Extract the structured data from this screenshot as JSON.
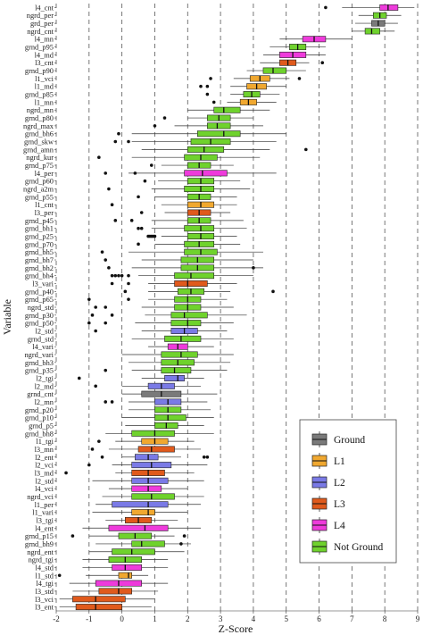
{
  "chart_data": {
    "type": "boxplot",
    "title": "",
    "xlabel": "Z-Score",
    "ylabel": "Variable",
    "xlim": [
      -2,
      9
    ],
    "xticks": [
      -2,
      -1,
      0,
      1,
      2,
      3,
      4,
      5,
      6,
      7,
      8,
      9
    ],
    "grid": "vertical dashed",
    "legend_position": "bottom-right",
    "groups": [
      {
        "name": "Ground",
        "color": "#7a7a7a"
      },
      {
        "name": "L1",
        "color": "#f0a830"
      },
      {
        "name": "L2",
        "color": "#7a7ae6"
      },
      {
        "name": "L3",
        "color": "#e05a1c"
      },
      {
        "name": "L4",
        "color": "#ee3bdb"
      },
      {
        "name": "Not Ground",
        "color": "#6fd22d"
      }
    ],
    "boxes": [
      {
        "label": "l4_cnt",
        "group": "L4",
        "wl": 6.7,
        "q1": 7.85,
        "med": 8.1,
        "q3": 8.4,
        "wh": 8.9,
        "out": [
          6.2
        ]
      },
      {
        "label": "ngrd_per",
        "group": "Not Ground",
        "wl": 7.2,
        "q1": 7.65,
        "med": 7.85,
        "q3": 8.05,
        "wh": 8.5,
        "out": []
      },
      {
        "label": "grd_per",
        "group": "Ground",
        "wl": 7.1,
        "q1": 7.6,
        "med": 7.8,
        "q3": 8.0,
        "wh": 8.4,
        "out": []
      },
      {
        "label": "ngrd_cnt",
        "group": "Not Ground",
        "wl": 7.0,
        "q1": 7.4,
        "med": 7.6,
        "q3": 7.85,
        "wh": 8.3,
        "out": []
      },
      {
        "label": "l4_mn",
        "group": "L4",
        "wl": 4.8,
        "q1": 5.5,
        "med": 5.85,
        "q3": 6.2,
        "wh": 7.0,
        "out": []
      },
      {
        "label": "grnd_p95",
        "group": "Not Ground",
        "wl": 4.5,
        "q1": 5.1,
        "med": 5.35,
        "q3": 5.6,
        "wh": 6.2,
        "out": []
      },
      {
        "label": "l4_md",
        "group": "L4",
        "wl": 4.3,
        "q1": 4.8,
        "med": 5.2,
        "q3": 5.6,
        "wh": 6.2,
        "out": []
      },
      {
        "label": "l3_cnt",
        "group": "L3",
        "wl": 4.2,
        "q1": 4.8,
        "med": 5.05,
        "q3": 5.3,
        "wh": 5.7,
        "out": [
          6.1
        ]
      },
      {
        "label": "grnd_p90",
        "group": "Not Ground",
        "wl": 3.8,
        "q1": 4.3,
        "med": 4.6,
        "q3": 5.0,
        "wh": 5.6,
        "out": []
      },
      {
        "label": "l1_vci",
        "group": "L1",
        "wl": 3.4,
        "q1": 3.9,
        "med": 4.2,
        "q3": 4.5,
        "wh": 5.1,
        "out": [
          2.7,
          5.4
        ]
      },
      {
        "label": "l1_md",
        "group": "L1",
        "wl": 3.3,
        "q1": 3.8,
        "med": 4.1,
        "q3": 4.4,
        "wh": 5.0,
        "out": [
          2.4,
          2.6
        ]
      },
      {
        "label": "grnd_p85",
        "group": "Not Ground",
        "wl": 3.3,
        "q1": 3.7,
        "med": 3.95,
        "q3": 4.2,
        "wh": 4.8,
        "out": [
          2.6
        ]
      },
      {
        "label": "l1_mn",
        "group": "L1",
        "wl": 3.2,
        "q1": 3.6,
        "med": 3.85,
        "q3": 4.1,
        "wh": 4.7,
        "out": [
          2.8
        ]
      },
      {
        "label": "ngrd_mn",
        "group": "Not Ground",
        "wl": 2.0,
        "q1": 2.8,
        "med": 3.1,
        "q3": 3.6,
        "wh": 4.5,
        "out": []
      },
      {
        "label": "grnd_p80",
        "group": "Not Ground",
        "wl": 2.0,
        "q1": 2.6,
        "med": 2.95,
        "q3": 3.3,
        "wh": 4.0,
        "out": [
          1.3
        ]
      },
      {
        "label": "ngrd_max",
        "group": "Not Ground",
        "wl": 1.6,
        "q1": 2.6,
        "med": 2.9,
        "q3": 3.3,
        "wh": 4.3,
        "out": [
          1.0
        ]
      },
      {
        "label": "grnd_bh6",
        "group": "Not Ground",
        "wl": 0.3,
        "q1": 2.3,
        "med": 3.1,
        "q3": 3.6,
        "wh": 5.0,
        "out": [
          -0.1
        ]
      },
      {
        "label": "grnd_skw",
        "group": "Not Ground",
        "wl": 0.3,
        "q1": 2.1,
        "med": 2.7,
        "q3": 3.3,
        "wh": 4.7,
        "out": [
          -0.2,
          0.2
        ]
      },
      {
        "label": "grnd_amn",
        "group": "Not Ground",
        "wl": 0.6,
        "q1": 2.0,
        "med": 2.5,
        "q3": 3.1,
        "wh": 4.5,
        "out": [
          5.6
        ]
      },
      {
        "label": "ngrd_kur",
        "group": "Not Ground",
        "wl": 0.3,
        "q1": 1.9,
        "med": 2.4,
        "q3": 2.9,
        "wh": 4.2,
        "out": [
          -0.7
        ]
      },
      {
        "label": "grnd_p75",
        "group": "Not Ground",
        "wl": 1.2,
        "q1": 2.0,
        "med": 2.35,
        "q3": 2.7,
        "wh": 3.4,
        "out": [
          0.9
        ]
      },
      {
        "label": "l4_per",
        "group": "L4",
        "wl": 0.2,
        "q1": 1.9,
        "med": 2.45,
        "q3": 3.2,
        "wh": 4.7,
        "out": [
          -0.5,
          0.4
        ]
      },
      {
        "label": "grnd_p60",
        "group": "Not Ground",
        "wl": 1.1,
        "q1": 2.0,
        "med": 2.4,
        "q3": 2.8,
        "wh": 3.6,
        "out": [
          0.7
        ]
      },
      {
        "label": "ngrd_a2m",
        "group": "Not Ground",
        "wl": 0.9,
        "q1": 1.9,
        "med": 2.4,
        "q3": 2.8,
        "wh": 3.9,
        "out": [
          -0.4
        ]
      },
      {
        "label": "grnd_p55",
        "group": "Not Ground",
        "wl": 1.0,
        "q1": 2.0,
        "med": 2.35,
        "q3": 2.7,
        "wh": 3.5,
        "out": [
          0.5
        ]
      },
      {
        "label": "l1_cnt",
        "group": "L1",
        "wl": 1.2,
        "q1": 2.0,
        "med": 2.4,
        "q3": 2.8,
        "wh": 3.5,
        "out": [
          -0.3
        ]
      },
      {
        "label": "l3_per",
        "group": "L3",
        "wl": 1.3,
        "q1": 2.0,
        "med": 2.35,
        "q3": 2.7,
        "wh": 3.3,
        "out": [
          0.6
        ]
      },
      {
        "label": "grnd_p45",
        "group": "Not Ground",
        "wl": 0.9,
        "q1": 2.0,
        "med": 2.35,
        "q3": 2.7,
        "wh": 3.7,
        "out": [
          -0.2,
          0.3
        ]
      },
      {
        "label": "grnd_bh1",
        "group": "Not Ground",
        "wl": 0.9,
        "q1": 1.9,
        "med": 2.4,
        "q3": 2.8,
        "wh": 3.8,
        "out": [
          0.5,
          0.6
        ]
      },
      {
        "label": "grnd_p25",
        "group": "Not Ground",
        "wl": 1.2,
        "q1": 2.0,
        "med": 2.4,
        "q3": 2.8,
        "wh": 3.5,
        "out": [
          0.8,
          0.85,
          0.9,
          0.95,
          1.0
        ]
      },
      {
        "label": "grnd_p70",
        "group": "Not Ground",
        "wl": 1.0,
        "q1": 1.9,
        "med": 2.35,
        "q3": 2.8,
        "wh": 3.6,
        "out": [
          0.5
        ]
      },
      {
        "label": "grnd_bh5",
        "group": "Not Ground",
        "wl": 0.2,
        "q1": 1.9,
        "med": 2.4,
        "q3": 2.9,
        "wh": 4.3,
        "out": [
          -0.6
        ]
      },
      {
        "label": "grnd_bh7",
        "group": "Not Ground",
        "wl": 0.6,
        "q1": 1.8,
        "med": 2.3,
        "q3": 2.8,
        "wh": 4.0,
        "out": [
          -0.5
        ]
      },
      {
        "label": "grnd_bh2",
        "group": "Not Ground",
        "wl": 0.3,
        "q1": 1.8,
        "med": 2.3,
        "q3": 2.8,
        "wh": 4.3,
        "out": [
          -0.4,
          4.0
        ]
      },
      {
        "label": "grnd_bh4",
        "group": "Not Ground",
        "wl": 0.5,
        "q1": 1.6,
        "med": 2.1,
        "q3": 2.8,
        "wh": 4.0,
        "out": [
          -0.3,
          -0.2,
          -0.1,
          0.0,
          0.2
        ]
      },
      {
        "label": "l3_vari",
        "group": "L3",
        "wl": 0.8,
        "q1": 1.6,
        "med": 2.0,
        "q3": 2.6,
        "wh": 3.5,
        "out": [
          -0.3,
          0.2
        ]
      },
      {
        "label": "grnd_p40",
        "group": "Not Ground",
        "wl": 0.8,
        "q1": 1.7,
        "med": 2.1,
        "q3": 2.5,
        "wh": 3.3,
        "out": [
          0.1,
          4.6
        ]
      },
      {
        "label": "grnd_p65",
        "group": "Not Ground",
        "wl": 0.8,
        "q1": 1.6,
        "med": 2.0,
        "q3": 2.4,
        "wh": 3.2,
        "out": [
          -1.0,
          0.2
        ]
      },
      {
        "label": "ngrd_std",
        "group": "Not Ground",
        "wl": 0.6,
        "q1": 1.6,
        "med": 2.0,
        "q3": 2.4,
        "wh": 3.4,
        "out": [
          -0.8,
          -0.5
        ]
      },
      {
        "label": "grnd_p30",
        "group": "Not Ground",
        "wl": 0.7,
        "q1": 1.5,
        "med": 1.9,
        "q3": 2.6,
        "wh": 3.8,
        "out": [
          -0.9,
          -0.3
        ]
      },
      {
        "label": "grnd_p50",
        "group": "Not Ground",
        "wl": 0.4,
        "q1": 1.5,
        "med": 2.0,
        "q3": 2.4,
        "wh": 3.4,
        "out": [
          -1.0,
          -0.5
        ]
      },
      {
        "label": "l2_std",
        "group": "L2",
        "wl": 0.6,
        "q1": 1.5,
        "med": 1.9,
        "q3": 2.3,
        "wh": 3.2,
        "out": [
          -0.8
        ]
      },
      {
        "label": "grnd_std",
        "group": "Not Ground",
        "wl": 0.3,
        "q1": 1.3,
        "med": 1.8,
        "q3": 2.4,
        "wh": 3.4,
        "out": []
      },
      {
        "label": "l4_vari",
        "group": "L4",
        "wl": 0.8,
        "q1": 1.4,
        "med": 1.7,
        "q3": 2.0,
        "wh": 2.8,
        "out": []
      },
      {
        "label": "ngrd_vari",
        "group": "Not Ground",
        "wl": 0.0,
        "q1": 1.2,
        "med": 1.8,
        "q3": 2.3,
        "wh": 3.4,
        "out": []
      },
      {
        "label": "grnd_bh3",
        "group": "Not Ground",
        "wl": 0.2,
        "q1": 1.2,
        "med": 1.7,
        "q3": 2.2,
        "wh": 3.3,
        "out": []
      },
      {
        "label": "grnd_p35",
        "group": "Not Ground",
        "wl": 0.3,
        "q1": 1.2,
        "med": 1.6,
        "q3": 2.1,
        "wh": 3.2,
        "out": [
          -0.5
        ]
      },
      {
        "label": "l2_tgi",
        "group": "L2",
        "wl": 0.6,
        "q1": 1.3,
        "med": 1.7,
        "q3": 1.9,
        "wh": 2.5,
        "out": [
          -1.3
        ]
      },
      {
        "label": "l2_md",
        "group": "L2",
        "wl": 0.0,
        "q1": 0.8,
        "med": 1.2,
        "q3": 1.6,
        "wh": 2.4,
        "out": [
          -0.8
        ]
      },
      {
        "label": "grnd_cnt",
        "group": "Ground",
        "wl": 0.0,
        "q1": 0.6,
        "med": 1.2,
        "q3": 1.8,
        "wh": 2.9,
        "out": []
      },
      {
        "label": "l2_mn",
        "group": "L2",
        "wl": 0.2,
        "q1": 1.0,
        "med": 1.4,
        "q3": 1.8,
        "wh": 2.6,
        "out": [
          -0.5,
          -0.3
        ]
      },
      {
        "label": "grnd_p20",
        "group": "Not Ground",
        "wl": 0.2,
        "q1": 1.0,
        "med": 1.4,
        "q3": 1.8,
        "wh": 2.7,
        "out": []
      },
      {
        "label": "grnd_p10",
        "group": "Not Ground",
        "wl": 0.0,
        "q1": 1.0,
        "med": 1.4,
        "q3": 1.95,
        "wh": 2.8,
        "out": []
      },
      {
        "label": "grnd_p5",
        "group": "Not Ground",
        "wl": 0.1,
        "q1": 1.0,
        "med": 1.35,
        "q3": 1.7,
        "wh": 2.5,
        "out": []
      },
      {
        "label": "grnd_bh8",
        "group": "Not Ground",
        "wl": -0.5,
        "q1": 0.3,
        "med": 1.0,
        "q3": 1.6,
        "wh": 2.8,
        "out": []
      },
      {
        "label": "l1_tgi",
        "group": "L1",
        "wl": -0.2,
        "q1": 0.6,
        "med": 1.0,
        "q3": 1.4,
        "wh": 2.2,
        "out": [
          -0.7
        ]
      },
      {
        "label": "l3_mn",
        "group": "L3",
        "wl": -0.4,
        "q1": 0.5,
        "med": 0.9,
        "q3": 1.6,
        "wh": 2.4,
        "out": [
          -0.9
        ]
      },
      {
        "label": "l2_ent",
        "group": "L2",
        "wl": 0.0,
        "q1": 0.4,
        "med": 0.8,
        "q3": 1.1,
        "wh": 1.8,
        "out": [
          -0.6,
          2.5,
          2.6
        ]
      },
      {
        "label": "l2_vci",
        "group": "L2",
        "wl": -0.3,
        "q1": 0.3,
        "med": 0.9,
        "q3": 1.5,
        "wh": 2.6,
        "out": [
          -1.0
        ]
      },
      {
        "label": "l3_md",
        "group": "L3",
        "wl": -0.2,
        "q1": 0.3,
        "med": 0.8,
        "q3": 1.3,
        "wh": 2.2,
        "out": [
          -1.7
        ]
      },
      {
        "label": "l2_std",
        "group": "L2",
        "wl": -0.9,
        "q1": 0.3,
        "med": 0.8,
        "q3": 1.4,
        "wh": 2.5,
        "out": []
      },
      {
        "label": "l4_vci",
        "group": "L4",
        "wl": -0.4,
        "q1": 0.3,
        "med": 0.8,
        "q3": 1.2,
        "wh": 2.0,
        "out": []
      },
      {
        "label": "ngrd_vci",
        "group": "Not Ground",
        "wl": -0.6,
        "q1": 0.3,
        "med": 0.9,
        "q3": 1.6,
        "wh": 2.5,
        "out": []
      },
      {
        "label": "l1_per",
        "group": "L2",
        "wl": -0.8,
        "q1": -0.3,
        "med": 0.8,
        "q3": 1.4,
        "wh": 2.4,
        "out": []
      },
      {
        "label": "l1_vari",
        "group": "L1",
        "wl": -0.9,
        "q1": 0.3,
        "med": 0.8,
        "q3": 1.0,
        "wh": 2.0,
        "out": []
      },
      {
        "label": "l3_tgi",
        "group": "L3",
        "wl": -0.5,
        "q1": 0.1,
        "med": 0.5,
        "q3": 0.9,
        "wh": 1.7,
        "out": []
      },
      {
        "label": "l4_ent",
        "group": "L4",
        "wl": -1.2,
        "q1": -0.4,
        "med": 0.7,
        "q3": 1.4,
        "wh": 2.4,
        "out": []
      },
      {
        "label": "grnd_p15",
        "group": "Not Ground",
        "wl": -1.0,
        "q1": -0.1,
        "med": 0.4,
        "q3": 0.9,
        "wh": 1.6,
        "out": [
          -1.5,
          1.9
        ]
      },
      {
        "label": "grnd_bh9",
        "group": "Not Ground",
        "wl": -0.8,
        "q1": 0.3,
        "med": 0.6,
        "q3": 1.3,
        "wh": 2.1,
        "out": [
          1.8
        ]
      },
      {
        "label": "ngrd_ent",
        "group": "Not Ground",
        "wl": -1.0,
        "q1": -0.3,
        "med": 0.3,
        "q3": 1.0,
        "wh": 1.9,
        "out": []
      },
      {
        "label": "ngrd_tgi",
        "group": "Not Ground",
        "wl": -1.2,
        "q1": -0.4,
        "med": 0.1,
        "q3": 0.6,
        "wh": 1.4,
        "out": []
      },
      {
        "label": "l4_std",
        "group": "L4",
        "wl": -1.2,
        "q1": -0.3,
        "med": 0.1,
        "q3": 0.6,
        "wh": 1.4,
        "out": []
      },
      {
        "label": "l1_std",
        "group": "L1",
        "wl": -1.1,
        "q1": -0.1,
        "med": 0.2,
        "q3": 0.3,
        "wh": 0.8,
        "out": [
          -1.9
        ]
      },
      {
        "label": "l4_tgi",
        "group": "L4",
        "wl": -1.6,
        "q1": -0.8,
        "med": -0.1,
        "q3": 0.6,
        "wh": 1.4,
        "out": []
      },
      {
        "label": "l3_std",
        "group": "L3",
        "wl": -1.5,
        "q1": -0.7,
        "med": -0.1,
        "q3": 0.3,
        "wh": 1.1,
        "out": []
      },
      {
        "label": "l3_vci",
        "group": "L3",
        "wl": -1.9,
        "q1": -1.5,
        "med": -0.8,
        "q3": 0.1,
        "wh": 1.0,
        "out": []
      },
      {
        "label": "l3_ent",
        "group": "L3",
        "wl": -1.9,
        "q1": -1.4,
        "med": -0.8,
        "q3": 0.0,
        "wh": 0.9,
        "out": []
      }
    ]
  }
}
